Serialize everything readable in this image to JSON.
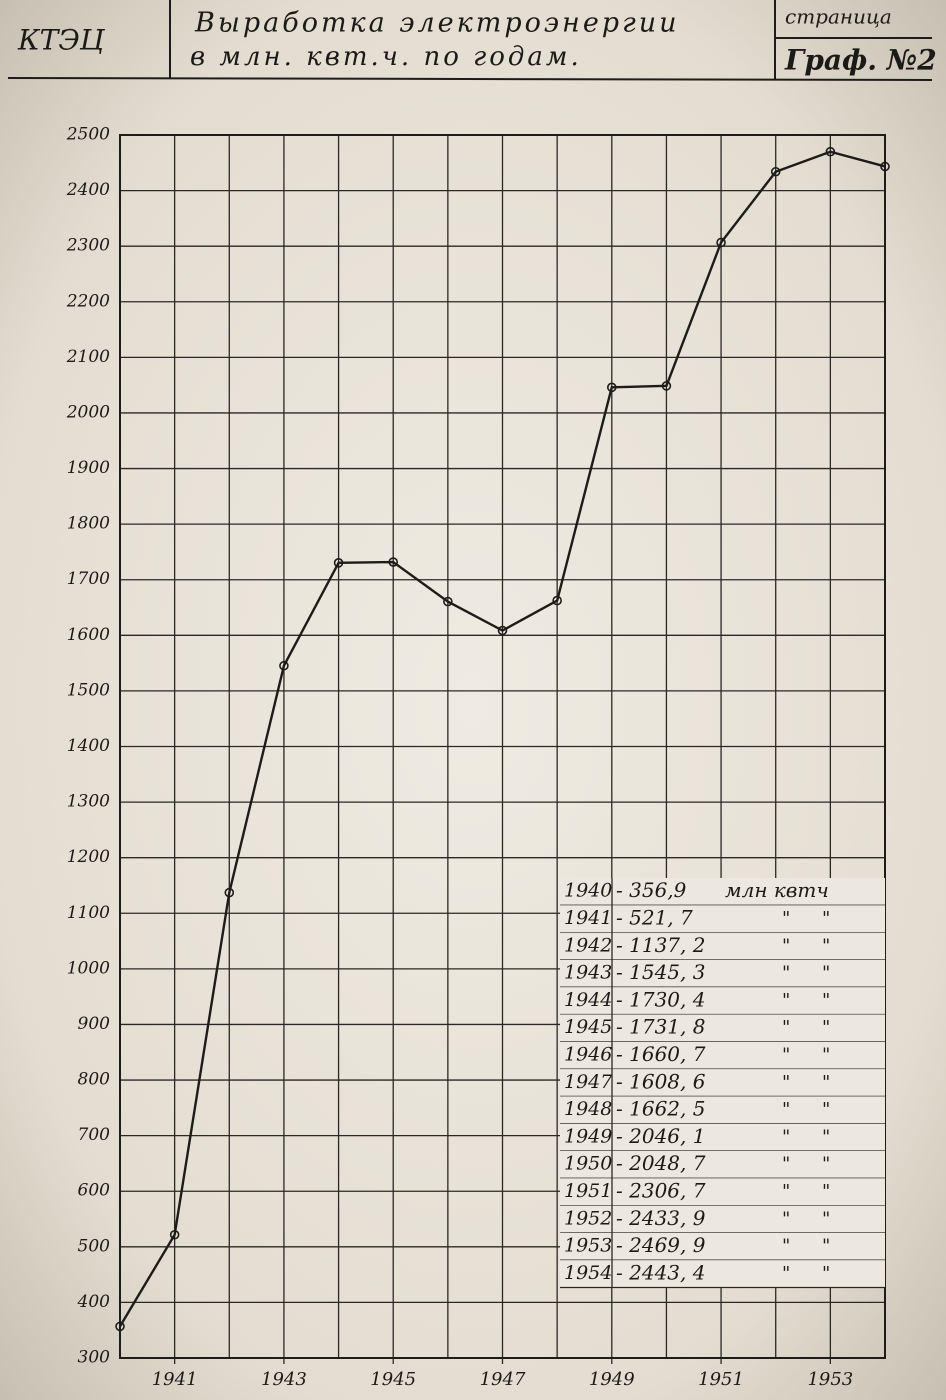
{
  "chart_data": {
    "type": "line",
    "header": {
      "org": "КТЭЦ",
      "title": "Выработка электроэнергии",
      "subtitle": "в млн. квт.ч. по годам.",
      "page_label": "страница",
      "sheet": "Граф. №2"
    },
    "x": [
      1940,
      1941,
      1942,
      1943,
      1944,
      1945,
      1946,
      1947,
      1948,
      1949,
      1950,
      1951,
      1952,
      1953,
      1954
    ],
    "series": [
      {
        "name": "Выработка электроэнергии",
        "color": "#1e1c1a",
        "values": [
          356.9,
          521.7,
          1137.2,
          1545.3,
          1730.4,
          1731.8,
          1660.7,
          1608.6,
          1662.5,
          2046.1,
          2048.7,
          2306.7,
          2433.9,
          2469.9,
          2443.4
        ]
      }
    ],
    "xlim": [
      1940,
      1954
    ],
    "xticks": [
      1941,
      1943,
      1945,
      1947,
      1949,
      1951,
      1953
    ],
    "x_grid": [
      1940,
      1941,
      1942,
      1943,
      1944,
      1945,
      1946,
      1947,
      1948,
      1949,
      1950,
      1951,
      1952,
      1953,
      1954
    ],
    "ylim": [
      300,
      2500
    ],
    "yticks": [
      300,
      400,
      500,
      600,
      700,
      800,
      900,
      1000,
      1100,
      1200,
      1300,
      1400,
      1500,
      1600,
      1700,
      1800,
      1900,
      2000,
      2100,
      2200,
      2300,
      2400,
      2500
    ],
    "grid": true,
    "table": {
      "rows": [
        {
          "year": "1940",
          "value": "- 356,9",
          "unit": "млн квтч"
        },
        {
          "year": "1941",
          "value": "- 521, 7",
          "marks": [
            "\"",
            "\""
          ]
        },
        {
          "year": "1942",
          "value": "- 1137, 2",
          "marks": [
            "\"",
            "\""
          ]
        },
        {
          "year": "1943",
          "value": "- 1545, 3",
          "marks": [
            "\"",
            "\""
          ]
        },
        {
          "year": "1944",
          "value": "- 1730, 4",
          "marks": [
            "\"",
            "\""
          ]
        },
        {
          "year": "1945",
          "value": "- 1731, 8",
          "marks": [
            "\"",
            "\""
          ]
        },
        {
          "year": "1946",
          "value": "- 1660, 7",
          "marks": [
            "\"",
            "\""
          ]
        },
        {
          "year": "1947",
          "value": "- 1608, 6",
          "marks": [
            "\"",
            "\""
          ]
        },
        {
          "year": "1948",
          "value": "- 1662, 5",
          "marks": [
            "\"",
            "\""
          ]
        },
        {
          "year": "1949",
          "value": "- 2046, 1",
          "marks": [
            "\"",
            "\""
          ]
        },
        {
          "year": "1950",
          "value": "- 2048, 7",
          "marks": [
            "\"",
            "\""
          ]
        },
        {
          "year": "1951",
          "value": "- 2306, 7",
          "marks": [
            "\"",
            "\""
          ]
        },
        {
          "year": "1952",
          "value": "- 2433, 9",
          "marks": [
            "\"",
            "\""
          ]
        },
        {
          "year": "1953",
          "value": "- 2469, 9",
          "marks": [
            "\"",
            "\""
          ]
        },
        {
          "year": "1954",
          "value": "- 2443, 4",
          "marks": [
            "\"",
            "\""
          ]
        }
      ]
    }
  }
}
